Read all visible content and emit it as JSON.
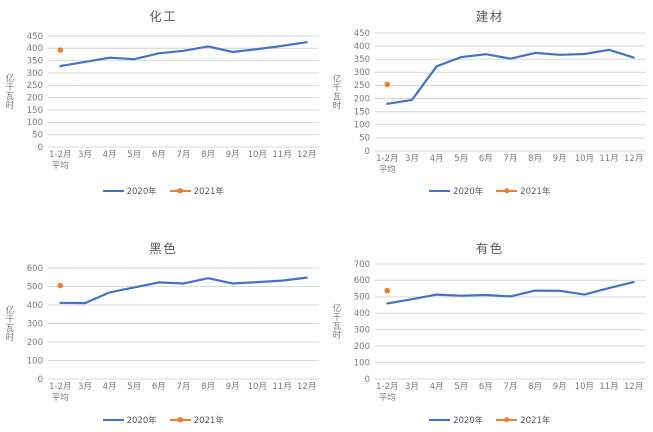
{
  "colors": {
    "series_2020": "#4472C4",
    "series_2021": "#ED7D31",
    "gridline": "#D9D9D9",
    "axis_text": "#7A7A7A",
    "title_text": "#595959",
    "background": "#FFFFFF"
  },
  "chart_data": [
    {
      "type": "line",
      "title": "化工",
      "ylabel": "亿千瓦时",
      "xlabel": "",
      "ylim": [
        0,
        450
      ],
      "ytick_step": 50,
      "grid": true,
      "legend_position": "bottom",
      "categories": [
        "1-2月 平均",
        "3月",
        "4月",
        "5月",
        "6月",
        "7月",
        "8月",
        "9月",
        "10月",
        "11月",
        "12月"
      ],
      "series": [
        {
          "name": "2020年",
          "style": "line",
          "color": "#4472C4",
          "values": [
            328,
            345,
            362,
            356,
            380,
            390,
            408,
            385,
            397,
            410,
            425
          ]
        },
        {
          "name": "2021年",
          "style": "point",
          "color": "#ED7D31",
          "values": [
            393,
            null,
            null,
            null,
            null,
            null,
            null,
            null,
            null,
            null,
            null
          ]
        }
      ]
    },
    {
      "type": "line",
      "title": "建材",
      "ylabel": "亿千瓦时",
      "xlabel": "",
      "ylim": [
        0,
        450
      ],
      "ytick_step": 50,
      "grid": true,
      "legend_position": "bottom",
      "categories": [
        "1-2月 平均",
        "3月",
        "4月",
        "5月",
        "6月",
        "7月",
        "8月",
        "9月",
        "10月",
        "11月",
        "12月"
      ],
      "series": [
        {
          "name": "2020年",
          "style": "line",
          "color": "#4472C4",
          "values": [
            180,
            195,
            323,
            358,
            369,
            352,
            374,
            367,
            370,
            386,
            356
          ]
        },
        {
          "name": "2021年",
          "style": "point",
          "color": "#ED7D31",
          "values": [
            254,
            null,
            null,
            null,
            null,
            null,
            null,
            null,
            null,
            null,
            null
          ]
        }
      ]
    },
    {
      "type": "line",
      "title": "黑色",
      "ylabel": "亿千瓦时",
      "xlabel": "",
      "ylim": [
        0,
        600
      ],
      "ytick_step": 100,
      "grid": true,
      "legend_position": "bottom",
      "categories": [
        "1-2月 平均",
        "3月",
        "4月",
        "5月",
        "6月",
        "7月",
        "8月",
        "9月",
        "10月",
        "11月",
        "12月"
      ],
      "series": [
        {
          "name": "2020年",
          "style": "line",
          "color": "#4472C4",
          "values": [
            412,
            410,
            468,
            495,
            522,
            516,
            545,
            516,
            524,
            532,
            548
          ]
        },
        {
          "name": "2021年",
          "style": "point",
          "color": "#ED7D31",
          "values": [
            505,
            null,
            null,
            null,
            null,
            null,
            null,
            null,
            null,
            null,
            null
          ]
        }
      ]
    },
    {
      "type": "line",
      "title": "有色",
      "ylabel": "亿千瓦时",
      "xlabel": "",
      "ylim": [
        0,
        700
      ],
      "ytick_step": 100,
      "grid": true,
      "legend_position": "bottom",
      "categories": [
        "1-2月 平均",
        "3月",
        "4月",
        "5月",
        "6月",
        "7月",
        "8月",
        "9月",
        "10月",
        "11月",
        "12月"
      ],
      "series": [
        {
          "name": "2020年",
          "style": "line",
          "color": "#4472C4",
          "values": [
            460,
            486,
            514,
            507,
            511,
            503,
            538,
            537,
            514,
            553,
            590
          ]
        },
        {
          "name": "2021年",
          "style": "point",
          "color": "#ED7D31",
          "values": [
            538,
            null,
            null,
            null,
            null,
            null,
            null,
            null,
            null,
            null,
            null
          ]
        }
      ]
    }
  ]
}
